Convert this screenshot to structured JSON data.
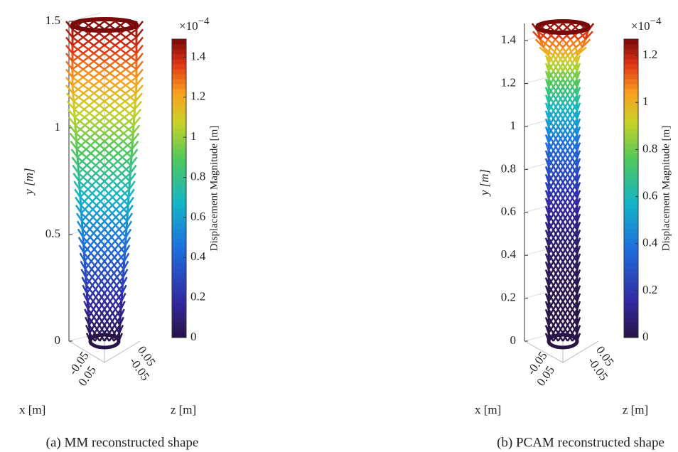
{
  "chart_data": [
    {
      "type": "lattice3d",
      "caption": "(a) MM reconstructed shape",
      "ylabel": "y [m]",
      "xlabel": "x [m]",
      "zlabel": "z [m]",
      "ylim": [
        0,
        1.5
      ],
      "yticks": [
        0,
        0.5,
        1,
        1.5
      ],
      "xticks": [
        -0.05,
        0.05
      ],
      "zticks": [
        0.05,
        -0.05
      ],
      "colorbar": {
        "label": "Displacement Magnitude [m]",
        "scale_base": "×10",
        "scale_exponent": "−4",
        "clim": [
          0,
          1.49
        ],
        "ticks": [
          0,
          0.2,
          0.4,
          0.6,
          0.8,
          1,
          1.2,
          1.4
        ],
        "colormap": "parula-jet"
      }
    },
    {
      "type": "lattice3d",
      "caption": "(b) PCAM reconstructed shape",
      "ylabel": "y [m]",
      "xlabel": "x [m]",
      "zlabel": "z [m]",
      "ylim": [
        0,
        1.48
      ],
      "yticks": [
        0,
        0.2,
        0.4,
        0.6,
        0.8,
        1,
        1.2,
        1.4
      ],
      "xticks": [
        -0.05,
        0.05
      ],
      "zticks": [
        0.05,
        -0.05
      ],
      "colorbar": {
        "label": "Displacement Magnitude [m]",
        "scale_base": "×10",
        "scale_exponent": "−4",
        "clim": [
          0,
          1.27
        ],
        "ticks": [
          0,
          0.2,
          0.4,
          0.6,
          0.8,
          1,
          1.2
        ],
        "colormap": "parula-jet"
      }
    }
  ]
}
